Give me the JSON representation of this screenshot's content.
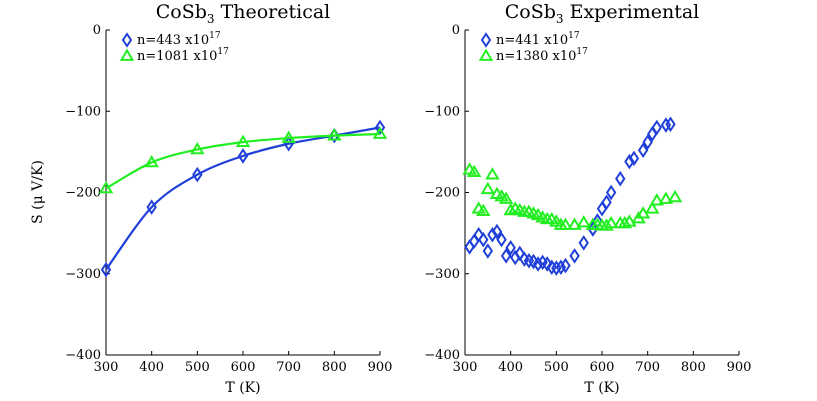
{
  "chart_data": [
    {
      "type": "scatter",
      "title": {
        "main": "CoSb",
        "sub": "3",
        "rest": " Theoretical"
      },
      "xlabel": "T (K)",
      "ylabel": "S (μ V/K)",
      "xlim": [
        300,
        900
      ],
      "ylim": [
        -400,
        0
      ],
      "xticks": [
        300,
        400,
        500,
        600,
        700,
        800,
        900
      ],
      "yticks": [
        0,
        -100,
        -200,
        -300,
        -400
      ],
      "ytick_labels": [
        "0",
        "−100",
        "−200",
        "−300",
        "−400"
      ],
      "legend_position": "top-left",
      "series": [
        {
          "name": "n=443 x10",
          "sup": "17",
          "marker": "diamond",
          "color": "#1f3fd8",
          "fit_line": true,
          "x": [
            300,
            400,
            500,
            600,
            700,
            800,
            900
          ],
          "y": [
            -295,
            -218,
            -178,
            -155,
            -140,
            -130,
            -120
          ]
        },
        {
          "name": "n=1081 x10",
          "sup": "17",
          "marker": "triangle",
          "color": "#22ee22",
          "fit_line": true,
          "x": [
            300,
            400,
            500,
            600,
            700,
            800,
            900
          ],
          "y": [
            -195,
            -163,
            -147,
            -138,
            -133,
            -130,
            -128
          ]
        }
      ]
    },
    {
      "type": "scatter",
      "title": {
        "main": "CoSb",
        "sub": "3",
        "rest": " Experimental"
      },
      "xlabel": "T (K)",
      "ylabel": "",
      "xlim": [
        300,
        900
      ],
      "ylim": [
        -400,
        0
      ],
      "xticks": [
        300,
        400,
        500,
        600,
        700,
        800,
        900
      ],
      "yticks": [
        0,
        -100,
        -200,
        -300,
        -400
      ],
      "ytick_labels": [
        "0",
        "−100",
        "−200",
        "−300",
        "−400"
      ],
      "legend_position": "top-left",
      "series": [
        {
          "name": "n=441 x10",
          "sup": "17",
          "marker": "diamond",
          "color": "#1f3fd8",
          "fit_line": false,
          "x": [
            310,
            320,
            330,
            340,
            350,
            360,
            370,
            380,
            390,
            400,
            410,
            420,
            430,
            440,
            450,
            460,
            470,
            480,
            490,
            500,
            510,
            520,
            540,
            560,
            580,
            590,
            600,
            610,
            620,
            640,
            660,
            670,
            690,
            700,
            710,
            720,
            740,
            750
          ],
          "y": [
            -267,
            -260,
            -252,
            -258,
            -272,
            -252,
            -248,
            -258,
            -278,
            -268,
            -280,
            -275,
            -282,
            -284,
            -285,
            -288,
            -286,
            -288,
            -292,
            -293,
            -292,
            -290,
            -278,
            -262,
            -245,
            -235,
            -220,
            -212,
            -200,
            -183,
            -162,
            -158,
            -148,
            -138,
            -128,
            -120,
            -117,
            -116
          ]
        },
        {
          "name": "n=1380 x10",
          "sup": "17",
          "marker": "triangle",
          "color": "#22ee22",
          "fit_line": false,
          "x": [
            310,
            320,
            330,
            340,
            350,
            360,
            370,
            380,
            390,
            400,
            410,
            420,
            430,
            440,
            450,
            460,
            470,
            480,
            490,
            500,
            510,
            520,
            540,
            560,
            580,
            590,
            600,
            610,
            620,
            640,
            650,
            660,
            680,
            690,
            710,
            720,
            740,
            760
          ],
          "y": [
            -172,
            -175,
            -220,
            -223,
            -196,
            -178,
            -202,
            -205,
            -208,
            -222,
            -220,
            -222,
            -224,
            -224,
            -226,
            -228,
            -231,
            -233,
            -233,
            -236,
            -240,
            -240,
            -240,
            -237,
            -240,
            -240,
            -241,
            -241,
            -238,
            -238,
            -238,
            -236,
            -232,
            -226,
            -220,
            -210,
            -208,
            -206
          ]
        }
      ]
    }
  ]
}
